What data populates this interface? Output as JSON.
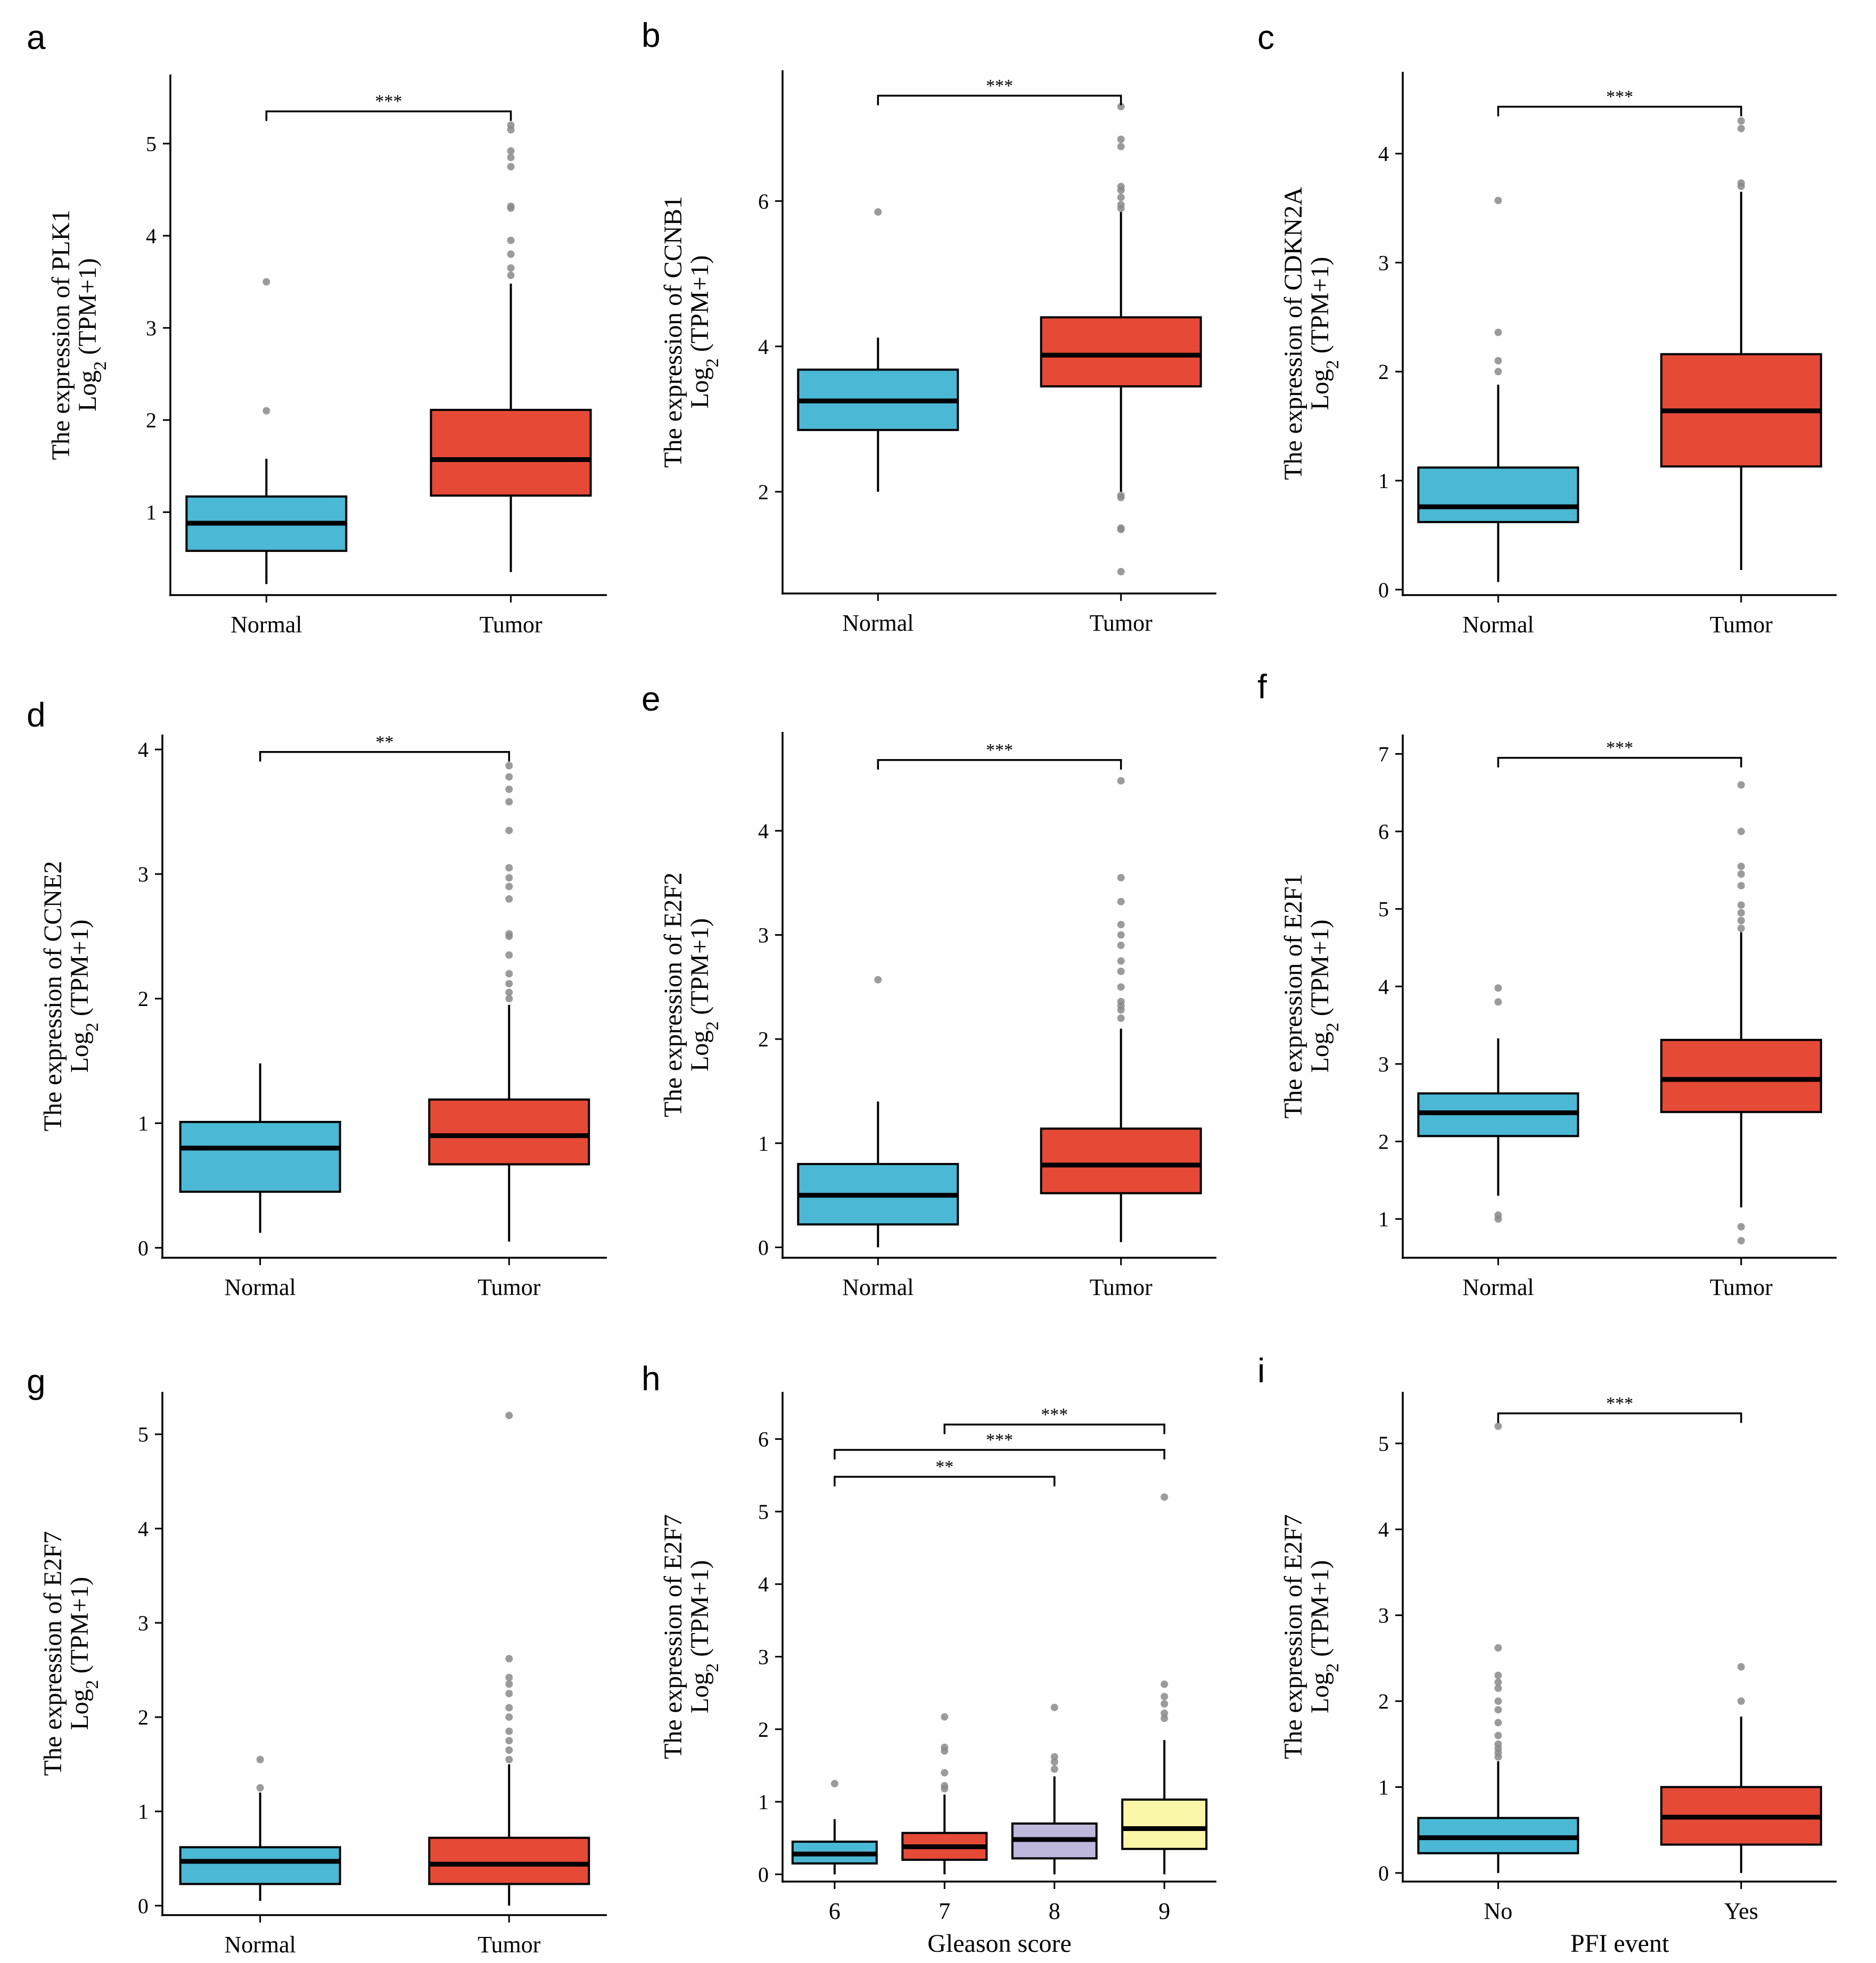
{
  "figure": {
    "title": "",
    "colors": {
      "normal_fill": "#4bb8d5",
      "tumor_fill": "#e54a37",
      "gleason7_fill": "#e54a37",
      "gleason8_fill": "#bdb8dc",
      "gleason9_fill": "#fbf7a9",
      "outlier": "#8a8a8a"
    }
  },
  "chart_data": [
    {
      "panel": "a",
      "type": "box",
      "ylabel_line1": "The  expression   of PLK1",
      "ylabel_line2": "Log",
      "ylabel_sub": "2",
      "ylabel_tail": " (TPM+1)",
      "xlabel": "",
      "ylim": [
        0.1,
        5.75
      ],
      "yticks": [
        "1",
        "2",
        "3",
        "4",
        "5"
      ],
      "groups": [
        {
          "label": "Normal",
          "color": "#4bb8d5",
          "q1": 0.58,
          "median": 0.88,
          "q3": 1.17,
          "whislo": 0.22,
          "whishi": 1.58,
          "outliers": [
            2.1,
            3.5
          ]
        },
        {
          "label": "Tumor",
          "color": "#e54a37",
          "q1": 1.18,
          "median": 1.57,
          "q3": 2.11,
          "whislo": 0.35,
          "whishi": 3.48,
          "outliers": [
            3.57,
            3.65,
            3.8,
            3.95,
            4.3,
            4.32,
            4.75,
            4.85,
            4.92,
            5.15,
            5.2
          ]
        }
      ],
      "comparisons": [
        {
          "from": 0,
          "to": 1,
          "y": 5.35,
          "label": "***"
        }
      ]
    },
    {
      "panel": "b",
      "type": "box",
      "ylabel_line1": "The  expression   of CCNB1",
      "ylabel_line2": "Log",
      "ylabel_sub": "2",
      "ylabel_tail": " (TPM+1)",
      "xlabel": "",
      "ylim": [
        0.6,
        7.8
      ],
      "yticks": [
        "2",
        "4",
        "6"
      ],
      "groups": [
        {
          "label": "Normal",
          "color": "#4bb8d5",
          "q1": 2.85,
          "median": 3.25,
          "q3": 3.68,
          "whislo": 2.0,
          "whishi": 4.12,
          "outliers": [
            5.85
          ]
        },
        {
          "label": "Tumor",
          "color": "#e54a37",
          "q1": 3.45,
          "median": 3.88,
          "q3": 4.4,
          "whislo": 2.0,
          "whishi": 5.85,
          "outliers": [
            0.9,
            1.48,
            1.5,
            1.92,
            1.95,
            5.9,
            5.95,
            6.05,
            6.15,
            6.2,
            6.75,
            6.85,
            7.3
          ]
        }
      ],
      "comparisons": [
        {
          "from": 0,
          "to": 1,
          "y": 7.45,
          "label": "***"
        }
      ]
    },
    {
      "panel": "c",
      "type": "box",
      "ylabel_line1": "The  expression   of CDKN2A",
      "ylabel_line2": "Log",
      "ylabel_sub": "2",
      "ylabel_tail": " (TPM+1)",
      "xlabel": "",
      "ylim": [
        -0.05,
        4.75
      ],
      "yticks": [
        "0",
        "1",
        "2",
        "3",
        "4"
      ],
      "groups": [
        {
          "label": "Normal",
          "color": "#4bb8d5",
          "q1": 0.62,
          "median": 0.76,
          "q3": 1.12,
          "whislo": 0.07,
          "whishi": 1.88,
          "outliers": [
            2.0,
            2.1,
            2.36,
            3.57
          ]
        },
        {
          "label": "Tumor",
          "color": "#e54a37",
          "q1": 1.13,
          "median": 1.64,
          "q3": 2.16,
          "whislo": 0.18,
          "whishi": 3.65,
          "outliers": [
            3.7,
            3.73,
            4.23,
            4.3
          ]
        }
      ],
      "comparisons": [
        {
          "from": 0,
          "to": 1,
          "y": 4.43,
          "label": "***"
        }
      ]
    },
    {
      "panel": "d",
      "type": "box",
      "ylabel_line1": "The  expression   of CCNE2",
      "ylabel_line2": "Log",
      "ylabel_sub": "2",
      "ylabel_tail": " (TPM+1)",
      "xlabel": "",
      "ylim": [
        -0.08,
        4.12
      ],
      "yticks": [
        "0",
        "1",
        "2",
        "3",
        "4"
      ],
      "groups": [
        {
          "label": "Normal",
          "color": "#4bb8d5",
          "q1": 0.45,
          "median": 0.8,
          "q3": 1.01,
          "whislo": 0.12,
          "whishi": 1.48,
          "outliers": []
        },
        {
          "label": "Tumor",
          "color": "#e54a37",
          "q1": 0.67,
          "median": 0.9,
          "q3": 1.19,
          "whislo": 0.05,
          "whishi": 1.95,
          "outliers": [
            2.0,
            2.05,
            2.12,
            2.2,
            2.35,
            2.5,
            2.52,
            2.8,
            2.9,
            2.97,
            3.05,
            3.35,
            3.58,
            3.68,
            3.78,
            3.87
          ]
        }
      ],
      "comparisons": [
        {
          "from": 0,
          "to": 1,
          "y": 3.98,
          "label": "**"
        }
      ]
    },
    {
      "panel": "e",
      "type": "box",
      "ylabel_line1": "The  expression   of E2F2",
      "ylabel_line2": "Log",
      "ylabel_sub": "2",
      "ylabel_tail": " (TPM+1)",
      "xlabel": "",
      "ylim": [
        -0.1,
        4.95
      ],
      "yticks": [
        "0",
        "1",
        "2",
        "3",
        "4"
      ],
      "groups": [
        {
          "label": "Normal",
          "color": "#4bb8d5",
          "q1": 0.22,
          "median": 0.5,
          "q3": 0.8,
          "whislo": 0.0,
          "whishi": 1.4,
          "outliers": [
            2.57
          ]
        },
        {
          "label": "Tumor",
          "color": "#e54a37",
          "q1": 0.52,
          "median": 0.79,
          "q3": 1.14,
          "whislo": 0.05,
          "whishi": 2.1,
          "outliers": [
            2.2,
            2.28,
            2.32,
            2.36,
            2.5,
            2.65,
            2.75,
            2.9,
            3.0,
            3.1,
            3.32,
            3.55,
            4.48
          ]
        }
      ],
      "comparisons": [
        {
          "from": 0,
          "to": 1,
          "y": 4.68,
          "label": "***"
        }
      ]
    },
    {
      "panel": "f",
      "type": "box",
      "ylabel_line1": "The  expression   of E2F1",
      "ylabel_line2": "Log",
      "ylabel_sub": "2",
      "ylabel_tail": " (TPM+1)",
      "xlabel": "",
      "ylim": [
        0.5,
        7.25
      ],
      "yticks": [
        "1",
        "2",
        "3",
        "4",
        "5",
        "6",
        "7"
      ],
      "groups": [
        {
          "label": "Normal",
          "color": "#4bb8d5",
          "q1": 2.07,
          "median": 2.37,
          "q3": 2.62,
          "whislo": 1.3,
          "whishi": 3.33,
          "outliers": [
            1.0,
            1.05,
            3.8,
            3.98
          ]
        },
        {
          "label": "Tumor",
          "color": "#e54a37",
          "q1": 2.38,
          "median": 2.8,
          "q3": 3.31,
          "whislo": 1.15,
          "whishi": 4.7,
          "outliers": [
            0.72,
            0.9,
            4.75,
            4.85,
            4.95,
            5.05,
            5.3,
            5.45,
            5.55,
            6.0,
            6.6
          ]
        }
      ],
      "comparisons": [
        {
          "from": 0,
          "to": 1,
          "y": 6.95,
          "label": "***"
        }
      ]
    },
    {
      "panel": "g",
      "type": "box",
      "ylabel_line1": "The  expression   of E2F7",
      "ylabel_line2": "Log",
      "ylabel_sub": "2",
      "ylabel_tail": " (TPM+1)",
      "xlabel": "",
      "ylim": [
        -0.1,
        5.45
      ],
      "yticks": [
        "0",
        "1",
        "2",
        "3",
        "4",
        "5"
      ],
      "groups": [
        {
          "label": "Normal",
          "color": "#4bb8d5",
          "q1": 0.23,
          "median": 0.47,
          "q3": 0.62,
          "whislo": 0.05,
          "whishi": 1.2,
          "outliers": [
            1.25,
            1.55
          ]
        },
        {
          "label": "Tumor",
          "color": "#e54a37",
          "q1": 0.23,
          "median": 0.44,
          "q3": 0.72,
          "whislo": 0.0,
          "whishi": 1.5,
          "outliers": [
            1.55,
            1.65,
            1.75,
            1.85,
            2.0,
            2.1,
            2.25,
            2.35,
            2.42,
            2.62,
            5.2
          ]
        }
      ],
      "comparisons": []
    },
    {
      "panel": "h",
      "type": "box",
      "ylabel_line1": "The  expression   of E2F7",
      "ylabel_line2": "Log",
      "ylabel_sub": "2",
      "ylabel_tail": " (TPM+1)",
      "xlabel": "Gleason score",
      "ylim": [
        -0.1,
        6.65
      ],
      "yticks": [
        "0",
        "1",
        "2",
        "3",
        "4",
        "5",
        "6"
      ],
      "groups": [
        {
          "label": "6",
          "color": "#4bb8d5",
          "q1": 0.15,
          "median": 0.28,
          "q3": 0.45,
          "whislo": 0.0,
          "whishi": 0.76,
          "outliers": [
            1.25
          ]
        },
        {
          "label": "7",
          "color": "#e54a37",
          "q1": 0.2,
          "median": 0.38,
          "q3": 0.57,
          "whislo": 0.0,
          "whishi": 1.1,
          "outliers": [
            1.18,
            1.22,
            1.4,
            1.7,
            1.75,
            2.17
          ]
        },
        {
          "label": "8",
          "color": "#bdb8dc",
          "q1": 0.22,
          "median": 0.48,
          "q3": 0.7,
          "whislo": 0.0,
          "whishi": 1.35,
          "outliers": [
            1.45,
            1.55,
            1.62,
            2.3
          ]
        },
        {
          "label": "9",
          "color": "#fbf7a9",
          "q1": 0.35,
          "median": 0.63,
          "q3": 1.03,
          "whislo": 0.0,
          "whishi": 1.85,
          "outliers": [
            2.15,
            2.22,
            2.35,
            2.45,
            2.62,
            5.2
          ]
        }
      ],
      "comparisons": [
        {
          "from": 0,
          "to": 2,
          "y": 5.48,
          "label": "**"
        },
        {
          "from": 0,
          "to": 3,
          "y": 5.85,
          "label": "***"
        },
        {
          "from": 1,
          "to": 3,
          "y": 6.2,
          "label": "***"
        }
      ]
    },
    {
      "panel": "i",
      "type": "box",
      "ylabel_line1": "The  expression   of E2F7",
      "ylabel_line2": "Log",
      "ylabel_sub": "2",
      "ylabel_tail": " (TPM+1)",
      "xlabel": "PFI event",
      "ylim": [
        -0.1,
        5.6
      ],
      "yticks": [
        "0",
        "1",
        "2",
        "3",
        "4",
        "5"
      ],
      "groups": [
        {
          "label": "No",
          "color": "#4bb8d5",
          "q1": 0.23,
          "median": 0.41,
          "q3": 0.64,
          "whislo": 0.0,
          "whishi": 1.3,
          "outliers": [
            1.35,
            1.4,
            1.45,
            1.5,
            1.6,
            1.75,
            1.9,
            2.0,
            2.15,
            2.22,
            2.3,
            2.62,
            5.2
          ]
        },
        {
          "label": "Yes",
          "color": "#e54a37",
          "q1": 0.33,
          "median": 0.65,
          "q3": 1.0,
          "whislo": 0.0,
          "whishi": 1.82,
          "outliers": [
            2.0,
            2.4
          ]
        }
      ],
      "comparisons": [
        {
          "from": 0,
          "to": 1,
          "y": 5.35,
          "label": "***"
        }
      ]
    }
  ]
}
